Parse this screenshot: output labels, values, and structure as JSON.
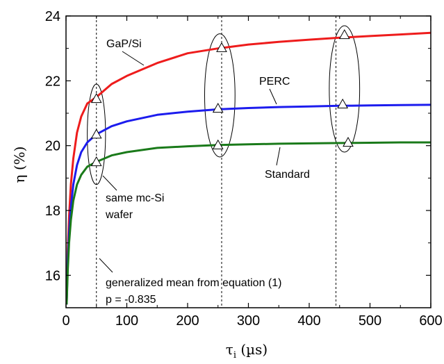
{
  "chart_data": {
    "type": "line",
    "ylabel": "η (%)",
    "xlabel": "τi (µs)",
    "xlabel_main": "τ",
    "xlabel_sub": "i",
    "xlabel_unit": " (µs)",
    "xlim": [
      0,
      600
    ],
    "ylim": [
      15,
      24
    ],
    "x_ticks": [
      0,
      100,
      200,
      300,
      400,
      500,
      600
    ],
    "y_ticks": [
      16,
      18,
      20,
      22,
      24
    ],
    "grid": false,
    "series": [
      {
        "name": "GaP/Si",
        "color": "#ee1c1c",
        "x": [
          1,
          3,
          5,
          8,
          12,
          18,
          25,
          35,
          50,
          75,
          100,
          150,
          200,
          250,
          300,
          350,
          400,
          450,
          500,
          550,
          600
        ],
        "y": [
          15.1,
          16.8,
          17.8,
          18.8,
          19.6,
          20.4,
          20.9,
          21.3,
          21.5,
          21.9,
          22.15,
          22.55,
          22.85,
          23.0,
          23.12,
          23.2,
          23.27,
          23.33,
          23.38,
          23.43,
          23.48
        ]
      },
      {
        "name": "PERC",
        "color": "#1c1cee",
        "x": [
          1,
          3,
          5,
          8,
          12,
          18,
          25,
          35,
          50,
          75,
          100,
          150,
          200,
          250,
          300,
          350,
          400,
          450,
          500,
          550,
          600
        ],
        "y": [
          15.1,
          16.5,
          17.3,
          18.1,
          18.8,
          19.4,
          19.8,
          20.1,
          20.35,
          20.6,
          20.75,
          20.95,
          21.05,
          21.12,
          21.16,
          21.19,
          21.21,
          21.23,
          21.24,
          21.25,
          21.26
        ]
      },
      {
        "name": "Standard",
        "color": "#1a7a1a",
        "x": [
          1,
          3,
          5,
          8,
          12,
          18,
          25,
          35,
          50,
          75,
          100,
          150,
          200,
          250,
          300,
          350,
          400,
          450,
          500,
          550,
          600
        ],
        "y": [
          15.1,
          16.2,
          17.0,
          17.7,
          18.3,
          18.8,
          19.1,
          19.35,
          19.5,
          19.7,
          19.8,
          19.93,
          19.98,
          20.02,
          20.04,
          20.06,
          20.07,
          20.08,
          20.09,
          20.1,
          20.1
        ]
      }
    ],
    "markers": [
      {
        "x": 50,
        "y": 21.45
      },
      {
        "x": 50,
        "y": 20.35
      },
      {
        "x": 50,
        "y": 19.5
      },
      {
        "x": 256,
        "y": 23.02
      },
      {
        "x": 250,
        "y": 21.15
      },
      {
        "x": 250,
        "y": 20.02
      },
      {
        "x": 458,
        "y": 23.42
      },
      {
        "x": 455,
        "y": 21.28
      },
      {
        "x": 464,
        "y": 20.1
      }
    ],
    "vlines": [
      50,
      256,
      444
    ],
    "ellipses": [
      {
        "cx": 50,
        "cy": 20.35,
        "rx": 15,
        "ry": 1.55
      },
      {
        "cx": 253,
        "cy": 21.55,
        "rx": 25,
        "ry": 1.9
      },
      {
        "cx": 458,
        "cy": 21.75,
        "rx": 25,
        "ry": 1.95
      }
    ],
    "annotations": {
      "gap": "GaP/Si",
      "perc": "PERC",
      "standard": "Standard",
      "same1": "same mc-Si",
      "same2": "wafer",
      "gen1": "generalized mean from equation (1)",
      "gen2": "p = -0.835"
    }
  }
}
